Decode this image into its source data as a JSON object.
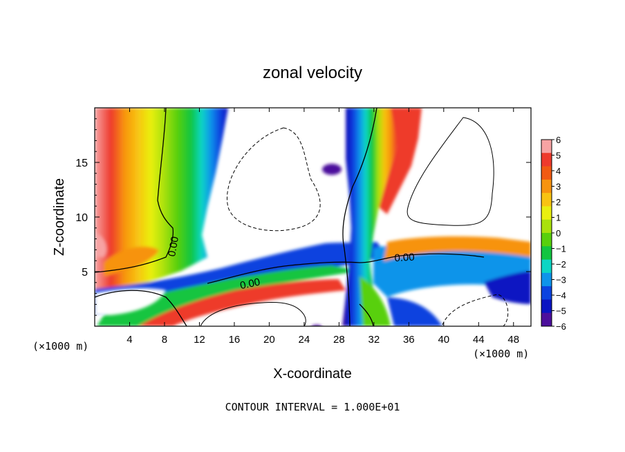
{
  "chart_data": {
    "type": "heatmap",
    "title": "zonal velocity",
    "xlabel": "X-coordinate",
    "ylabel": "Z-coordinate",
    "x_unit": "(×1000 m)",
    "z_unit": "(×1000 m)",
    "footer": "CONTOUR INTERVAL = 1.000E+01",
    "xlim": [
      0,
      50
    ],
    "zlim": [
      0,
      20
    ],
    "x_ticks": [
      4,
      8,
      12,
      16,
      20,
      24,
      28,
      32,
      36,
      40,
      44,
      48
    ],
    "z_ticks": [
      5,
      10,
      15
    ],
    "colorbar": {
      "range": [
        -6,
        6
      ],
      "ticks": [
        6,
        5,
        4,
        3,
        2,
        1,
        0,
        -1,
        -2,
        -3,
        -4,
        -5,
        -6
      ],
      "colors": [
        "#f7a3a3",
        "#ee3a2c",
        "#f15a12",
        "#f7930f",
        "#f8c312",
        "#e9ef10",
        "#a9e10c",
        "#58d00c",
        "#12c540",
        "#0cd6c4",
        "#0e94ea",
        "#0b43df",
        "#0a14c2",
        "#4c0f9c"
      ]
    },
    "contour_labels": [
      "0.00",
      "0.00",
      "0.00"
    ],
    "contour_label_positions": [
      [
        9.0,
        7.3
      ],
      [
        17.8,
        3.9
      ],
      [
        35.5,
        6.3
      ]
    ],
    "contour_interval": 10,
    "negative_contours_dashed": true
  }
}
